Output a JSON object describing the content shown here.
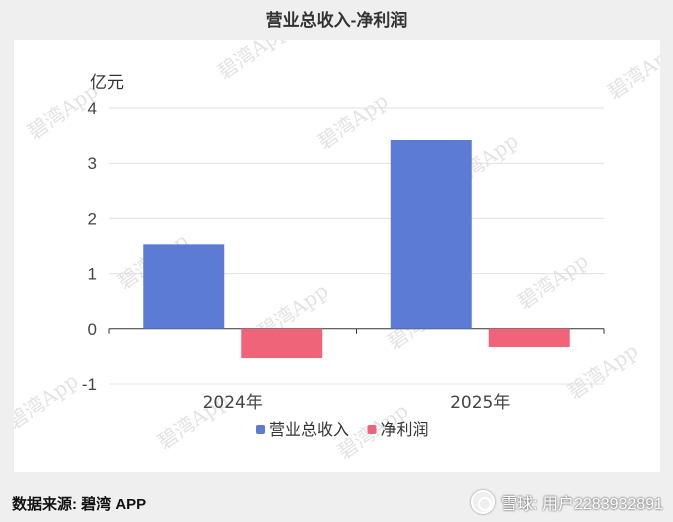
{
  "header": {
    "title": "营业总收入-净利润"
  },
  "chart_data": {
    "type": "bar",
    "categories": [
      "2024年",
      "2025年"
    ],
    "series": [
      {
        "name": "营业总收入",
        "values": [
          1.53,
          3.42
        ],
        "color": "#5b7bd5"
      },
      {
        "name": "净利润",
        "values": [
          -0.53,
          -0.33
        ],
        "color": "#f0647a"
      }
    ],
    "ylabel": "亿元",
    "ylim": [
      -1,
      4
    ],
    "yticks": [
      -1,
      0,
      1,
      2,
      3,
      4
    ],
    "grid": true,
    "legend": "bottom"
  },
  "footer": {
    "source": "数据来源: 碧湾 APP",
    "brand": "雪球: 用户2283932891"
  },
  "watermark": "碧湾App"
}
